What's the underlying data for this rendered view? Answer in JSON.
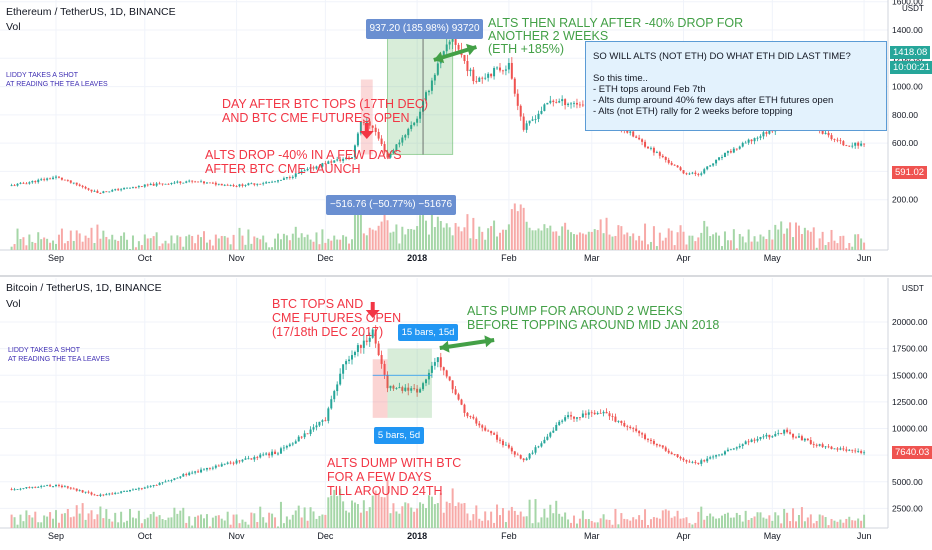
{
  "colors": {
    "up": "#26a69a",
    "down": "#ef5350",
    "red_text": "#f23645",
    "green_text": "#43a047",
    "blue_box": "#2196f3",
    "note_bg": "#e3f2fd",
    "note_border": "#5b9bd5",
    "axis_text": "#131722",
    "grid": "#f0f3fa",
    "left_note": "#3f2fb3"
  },
  "top": {
    "title": "Ethereum / TetherUS, 1D, BINANCE",
    "vol_label": "Vol",
    "watermark": "LIDDY TAKES A SHOT\nAT READING THE TEA LEAVES",
    "axis": {
      "currency": "USDT",
      "ticks": [
        "1600.00",
        "1400.00",
        "1200.00",
        "1000.00",
        "800.00",
        "600.00",
        "400.00",
        "200.00"
      ],
      "price_box": "1418.08",
      "time_box": "10:00:21",
      "last_price": "591.02"
    },
    "months": [
      "Sep",
      "Oct",
      "Nov",
      "Dec",
      "2018",
      "Feb",
      "Mar",
      "Apr",
      "May",
      "Jun"
    ],
    "measure_top": "937.20 (185.98%) 93720",
    "measure_bottom": "−516.76 (−50.77%) −51676",
    "annotations": {
      "rally": "ALTS THEN RALLY AFTER -40% DROP FOR\nANOTHER 2 WEEKS\n(ETH +185%)",
      "btc_tops": "DAY AFTER BTC TOPS (17TH DEC)\nAND BTC CME FUTURES OPEN",
      "alts_drop": "ALTS DROP -40% IN A FEW DAYS\nAFTER BTC CME LAUNCH"
    },
    "note": "SO WILL ALTS (NOT ETH) DO WHAT ETH DID LAST TIME?\n\nSo this time..\n- ETH tops around Feb 7th\n- Alts dump around 40% few days after ETH futures open\n- Alts (not ETH) rally for 2 weeks before topping"
  },
  "bottom": {
    "title": "Bitcoin / TetherUS, 1D, BINANCE",
    "vol_label": "Vol",
    "watermark": "LIDDY TAKES A SHOT\nAT READING THE TEA LEAVES",
    "axis": {
      "currency": "USDT",
      "ticks": [
        "20000.00",
        "17500.00",
        "15000.00",
        "12500.00",
        "10000.00",
        "7500.00",
        "5000.00",
        "2500.00"
      ],
      "last_price": "7640.03"
    },
    "months": [
      "Sep",
      "Oct",
      "Nov",
      "Dec",
      "2018",
      "Feb",
      "Mar",
      "Apr",
      "May",
      "Jun"
    ],
    "bars_box_1": "15 bars, 15d",
    "bars_box_2": "5 bars, 5d",
    "annotations": {
      "btc_tops": "BTC TOPS AND\nCME FUTURES OPEN\n(17/18th DEC 2017)",
      "alts_pump": "ALTS PUMP FOR AROUND 2 WEEKS\nBEFORE TOPPING AROUND MID JAN 2018",
      "alts_dump": "ALTS DUMP WITH BTC\nFOR A FEW DAYS\nTILL AROUND 24TH"
    }
  },
  "chart_data": [
    {
      "type": "candlestick",
      "title": "Ethereum / TetherUS, 1D, BINANCE",
      "ylim": [
        0,
        1700
      ],
      "x": [
        "2017-08-17",
        "2017-09-01",
        "2017-09-15",
        "2017-10-01",
        "2017-10-15",
        "2017-11-01",
        "2017-11-15",
        "2017-12-01",
        "2017-12-10",
        "2017-12-13",
        "2017-12-17",
        "2017-12-22",
        "2018-01-01",
        "2018-01-08",
        "2018-01-13",
        "2018-01-20",
        "2018-02-01",
        "2018-02-06",
        "2018-02-15",
        "2018-03-01",
        "2018-03-15",
        "2018-04-01",
        "2018-04-06",
        "2018-04-15",
        "2018-05-01",
        "2018-05-05",
        "2018-05-15",
        "2018-05-25",
        "2018-06-01"
      ],
      "close": [
        300,
        360,
        250,
        300,
        330,
        300,
        330,
        460,
        500,
        760,
        720,
        500,
        780,
        1150,
        1350,
        1050,
        1150,
        700,
        900,
        870,
        650,
        390,
        380,
        520,
        700,
        810,
        710,
        590,
        591
      ]
    },
    {
      "type": "candlestick",
      "title": "Bitcoin / TetherUS, 1D, BINANCE",
      "ylim": [
        0,
        22000
      ],
      "x": [
        "2017-08-17",
        "2017-09-01",
        "2017-09-15",
        "2017-10-01",
        "2017-10-15",
        "2017-11-01",
        "2017-11-15",
        "2017-12-01",
        "2017-12-07",
        "2017-12-17",
        "2017-12-22",
        "2018-01-01",
        "2018-01-08",
        "2018-01-17",
        "2018-02-06",
        "2018-02-20",
        "2018-03-05",
        "2018-04-01",
        "2018-04-06",
        "2018-04-25",
        "2018-05-05",
        "2018-05-15",
        "2018-06-01"
      ],
      "close": [
        4300,
        4700,
        3700,
        4400,
        5700,
        6900,
        7800,
        10800,
        16000,
        19100,
        14000,
        13500,
        16500,
        11500,
        7000,
        11000,
        11500,
        7000,
        6800,
        9000,
        9700,
        8500,
        7640
      ]
    }
  ]
}
